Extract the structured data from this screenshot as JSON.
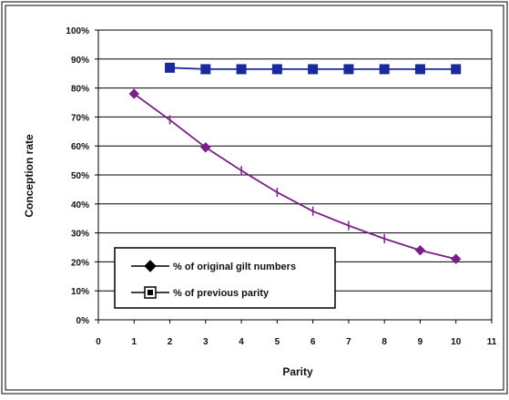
{
  "chart_data": {
    "type": "line",
    "xlabel": "Parity",
    "ylabel": "Conception rate",
    "xlim": [
      0,
      11
    ],
    "ylim": [
      0,
      100
    ],
    "x_ticks": [
      "0",
      "1",
      "2",
      "3",
      "4",
      "5",
      "6",
      "7",
      "8",
      "9",
      "10",
      "11"
    ],
    "y_ticks": [
      "0%",
      "10%",
      "20%",
      "30%",
      "40%",
      "50%",
      "60%",
      "70%",
      "80%",
      "90%",
      "100%"
    ],
    "grid": true,
    "legend_position": "bottom-left",
    "series": [
      {
        "name": "% of original gilt numbers",
        "color": "#7a1f86",
        "marker": "diamond",
        "x": [
          1,
          2,
          3,
          4,
          5,
          6,
          7,
          8,
          9,
          10
        ],
        "values": [
          78,
          69,
          59.5,
          51.5,
          44,
          37.5,
          32.5,
          28,
          24,
          21
        ],
        "marked_points": [
          1,
          3,
          9,
          10
        ]
      },
      {
        "name": "% of previous parity",
        "color": "#1a2a9a",
        "marker": "square",
        "x": [
          2,
          3,
          4,
          5,
          6,
          7,
          8,
          9,
          10
        ],
        "values": [
          87,
          86.5,
          86.5,
          86.5,
          86.5,
          86.5,
          86.5,
          86.5,
          86.5
        ],
        "marked_points": [
          2,
          3,
          4,
          5,
          6,
          7,
          8,
          9,
          10
        ]
      }
    ]
  }
}
